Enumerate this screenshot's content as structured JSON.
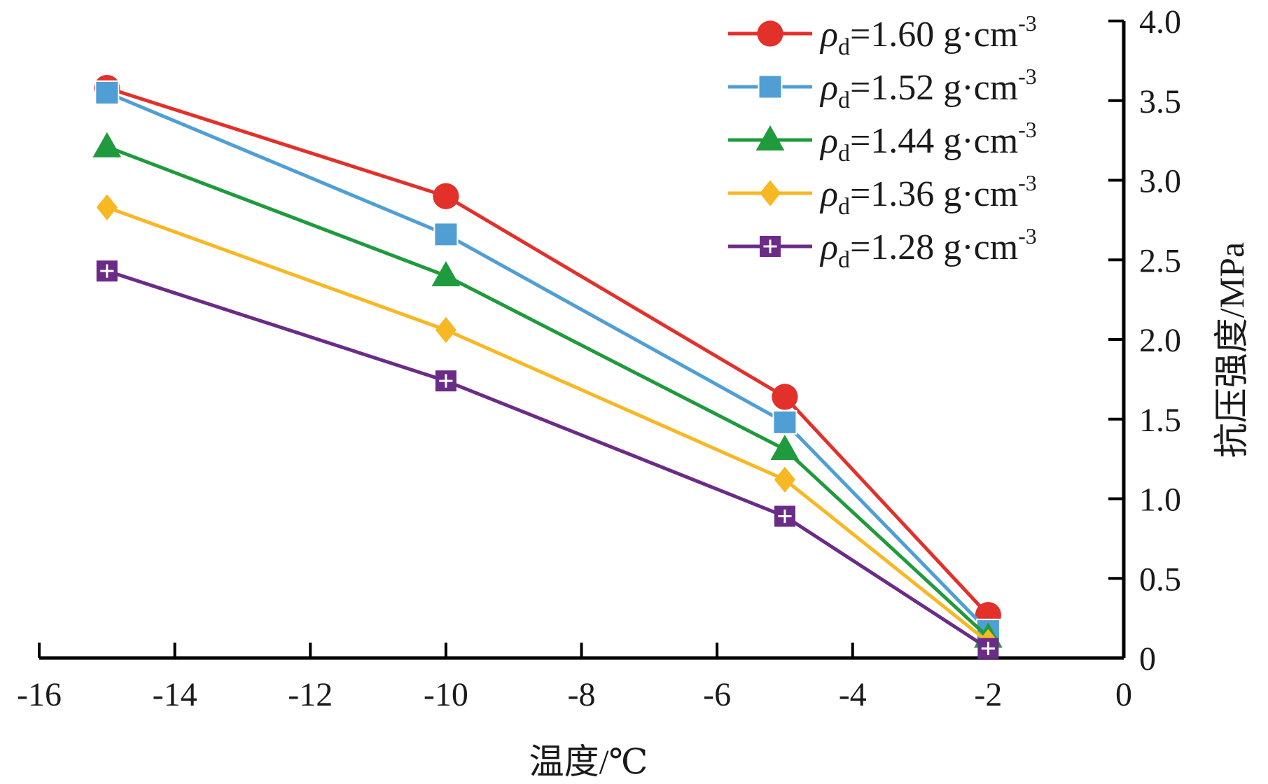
{
  "chart_data": {
    "type": "line",
    "xlabel": "温度/℃",
    "ylabel": "抗压强度/MPa",
    "xlim": [
      -16,
      0
    ],
    "ylim": [
      0,
      4.0
    ],
    "x_ticks": [
      "-16",
      "-14",
      "-12",
      "-10",
      "-8",
      "-6",
      "-4",
      "-2",
      "0"
    ],
    "x_tick_values": [
      -16,
      -14,
      -12,
      -10,
      -8,
      -6,
      -4,
      -2,
      0
    ],
    "y_ticks": [
      "0",
      "0.5",
      "1.0",
      "1.5",
      "2.0",
      "2.5",
      "3.0",
      "3.5",
      "4.0"
    ],
    "y_tick_values": [
      0,
      0.5,
      1.0,
      1.5,
      2.0,
      2.5,
      3.0,
      3.5,
      4.0
    ],
    "y_axis_side": "right",
    "grid": false,
    "legend_position": "top-right",
    "x": [
      -15,
      -10,
      -5,
      -2
    ],
    "series": [
      {
        "name": "ρd=1.60 g·cm-3",
        "legend": {
          "symbol": "ρ",
          "sub": "d",
          "text": "=1.60 g·cm",
          "sup": "-3"
        },
        "values": [
          3.58,
          2.9,
          1.64,
          0.27
        ],
        "color": "#e2302a",
        "marker": "circle"
      },
      {
        "name": "ρd=1.52 g·cm-3",
        "legend": {
          "symbol": "ρ",
          "sub": "d",
          "text": "=1.52 g·cm",
          "sup": "-3"
        },
        "values": [
          3.55,
          2.66,
          1.48,
          0.17
        ],
        "color": "#4f9fd5",
        "marker": "square"
      },
      {
        "name": "ρd=1.44 g·cm-3",
        "legend": {
          "symbol": "ρ",
          "sub": "d",
          "text": "=1.44 g·cm",
          "sup": "-3"
        },
        "values": [
          3.21,
          2.4,
          1.31,
          0.13
        ],
        "color": "#1f9a3c",
        "marker": "triangle"
      },
      {
        "name": "ρd=1.36 g·cm-3",
        "legend": {
          "symbol": "ρ",
          "sub": "d",
          "text": "=1.36 g·cm",
          "sup": "-3"
        },
        "values": [
          2.83,
          2.06,
          1.12,
          0.1
        ],
        "color": "#f7b824",
        "marker": "diamond"
      },
      {
        "name": "ρd=1.28 g·cm-3",
        "legend": {
          "symbol": "ρ",
          "sub": "d",
          "text": "=1.28 g·cm",
          "sup": "-3"
        },
        "values": [
          2.43,
          1.74,
          0.89,
          0.06
        ],
        "color": "#6a2c86",
        "marker": "square-cross"
      }
    ]
  }
}
